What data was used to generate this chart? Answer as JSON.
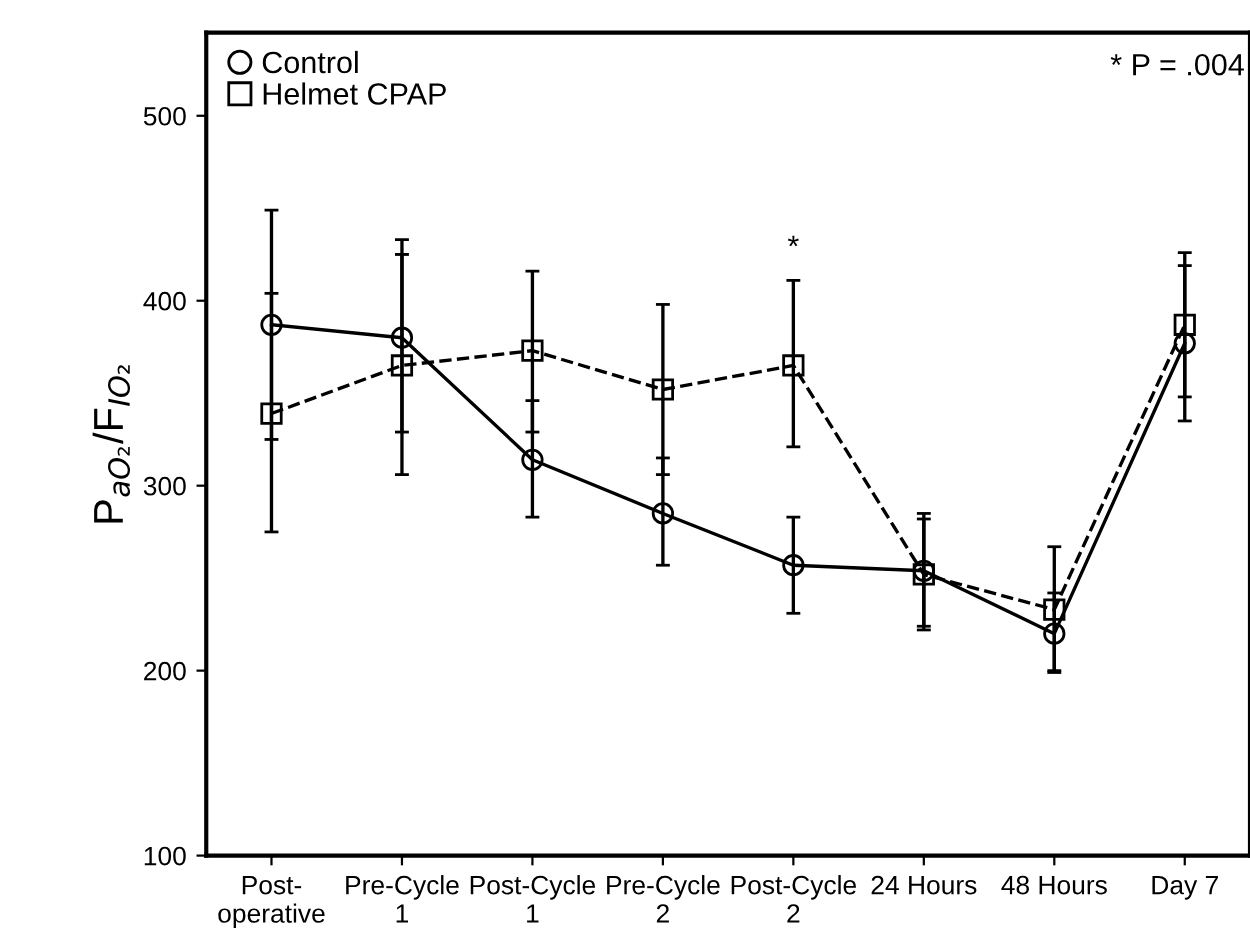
{
  "chart_data": {
    "type": "line",
    "ylabel": "P$_{aO₂}$/F$_{IO₂}$",
    "categories": [
      "Post-\noperative",
      "Pre-Cycle\n1",
      "Post-Cycle\n1",
      "Pre-Cycle\n2",
      "Post-Cycle\n2",
      "24 Hours",
      "48 Hours",
      "Day 7"
    ],
    "series": [
      {
        "name": "Control",
        "color": "#000000",
        "marker": "circle",
        "line_style": "solid",
        "values": [
          387,
          380,
          314,
          285,
          257,
          254,
          220,
          377
        ],
        "errors": [
          [
            325,
            449
          ],
          [
            329,
            433
          ],
          [
            283,
            346
          ],
          [
            257,
            315
          ],
          [
            231,
            283
          ],
          [
            224,
            285
          ],
          [
            199,
            242
          ],
          [
            335,
            419
          ]
        ]
      },
      {
        "name": "Helmet CPAP",
        "color": "#000000",
        "marker": "square",
        "line_style": "dashed",
        "values": [
          339,
          365,
          373,
          352,
          365,
          252,
          233,
          387
        ],
        "errors": [
          [
            275,
            404
          ],
          [
            306,
            425
          ],
          [
            329,
            416
          ],
          [
            306,
            398
          ],
          [
            321,
            411
          ],
          [
            222,
            282
          ],
          [
            200,
            267
          ],
          [
            348,
            426
          ]
        ]
      }
    ],
    "ylim": [
      100,
      545
    ],
    "yticks": [
      100,
      200,
      300,
      400,
      500
    ],
    "grid": false,
    "legend": "top left",
    "annotations": [
      "* P = .004",
      "*"
    ]
  }
}
